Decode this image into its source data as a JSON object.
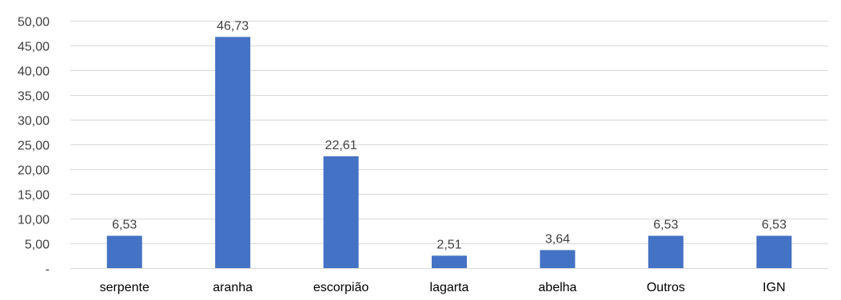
{
  "chart_data": {
    "type": "bar",
    "categories": [
      "serpente",
      "aranha",
      "escorpião",
      "lagarta",
      "abelha",
      "Outros",
      "IGN"
    ],
    "values": [
      6.53,
      46.73,
      22.61,
      2.51,
      3.64,
      6.53,
      6.53
    ],
    "data_labels": [
      "6,53",
      "46,73",
      "22,61",
      "2,51",
      "3,64",
      "6,53",
      "6,53"
    ],
    "ylim": [
      0,
      50
    ],
    "yticks": [
      0,
      5,
      10,
      15,
      20,
      25,
      30,
      35,
      40,
      45,
      50
    ],
    "ytick_labels": [
      "-",
      "5,00",
      "10,00",
      "15,00",
      "20,00",
      "25,00",
      "30,00",
      "35,00",
      "40,00",
      "45,00",
      "50,00"
    ],
    "grid": true,
    "title": "",
    "xlabel": "",
    "ylabel": "",
    "colors": {
      "bar": "#4472C4",
      "grid": "#D9D9D9",
      "axis": "#D9D9D9"
    }
  }
}
